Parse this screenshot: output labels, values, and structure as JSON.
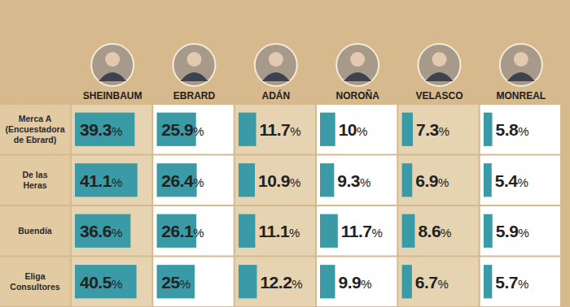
{
  "chart_data": {
    "type": "bar",
    "orientation": "horizontal",
    "categories": [
      "Merca A (Encuestadora de Ebrard)",
      "De las Heras",
      "Buendía",
      "Eliga Consultores"
    ],
    "series": [
      {
        "name": "SHEINBAUM",
        "values": [
          39.3,
          41.1,
          36.6,
          40.5
        ],
        "value_labels": [
          "39.3%",
          "41.1%",
          "36.6%",
          "40.5%"
        ]
      },
      {
        "name": "EBRARD",
        "values": [
          25.9,
          26.4,
          26.1,
          25
        ],
        "value_labels": [
          "25.9%",
          "26.4%",
          "26.1%",
          "25%"
        ]
      },
      {
        "name": "ADÁN",
        "values": [
          11.7,
          10.9,
          11.1,
          12.2
        ],
        "value_labels": [
          "11.7%",
          "10.9%",
          "11.1%",
          "12.2%"
        ]
      },
      {
        "name": "NOROÑA",
        "values": [
          10,
          9.3,
          11.7,
          9.9
        ],
        "value_labels": [
          "10%",
          "9.3%",
          "11.7%",
          "9.9%"
        ]
      },
      {
        "name": "VELASCO",
        "values": [
          7.3,
          6.9,
          8.6,
          6.7
        ],
        "value_labels": [
          "7.3%",
          "6.9%",
          "8.6%",
          "6.7%"
        ]
      },
      {
        "name": "MONREAL",
        "values": [
          5.8,
          5.4,
          5.9,
          5.7
        ],
        "value_labels": [
          "5.8%",
          "5.4%",
          "5.9%",
          "5.7%"
        ]
      }
    ],
    "color": "#3a9ba6",
    "xlim": [
      0,
      50
    ],
    "tick_labels": false,
    "data_labels": true
  }
}
